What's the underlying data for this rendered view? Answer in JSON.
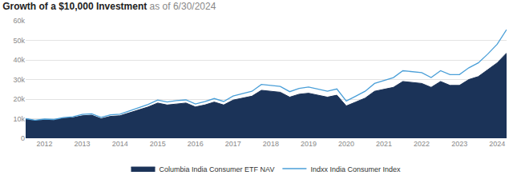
{
  "chart_data": {
    "type": "line",
    "title": "Growth of a $10,000 Investment",
    "subtitle": "as of 6/30/2024",
    "categories": [
      null,
      null,
      "2012",
      null,
      null,
      null,
      "2013",
      null,
      null,
      null,
      "2014",
      null,
      null,
      null,
      "2015",
      null,
      null,
      null,
      "2016",
      null,
      null,
      null,
      "2017",
      null,
      null,
      null,
      "2018",
      null,
      null,
      null,
      "2019",
      null,
      null,
      null,
      "2020",
      null,
      null,
      null,
      "2021",
      null,
      null,
      null,
      "2022",
      null,
      null,
      null,
      "2023",
      null,
      null,
      null,
      "2024",
      null
    ],
    "series": [
      {
        "name": "Columbia India Consumer ETF NAV",
        "type": "area",
        "color": "#1b3358",
        "values": [
          10000,
          9000,
          9500,
          9300,
          10200,
          10500,
          11500,
          11800,
          10000,
          11200,
          11500,
          13000,
          14500,
          16000,
          18000,
          17000,
          17500,
          18000,
          16000,
          17000,
          18500,
          17000,
          19500,
          20500,
          21500,
          24500,
          24000,
          23500,
          21000,
          22500,
          23000,
          22000,
          21000,
          22000,
          16500,
          18500,
          20500,
          24000,
          25000,
          26000,
          29000,
          28500,
          28000,
          26000,
          29000,
          27000,
          27000,
          30000,
          31500,
          35000,
          38500,
          43500
        ]
      },
      {
        "name": "Indxx India Consumer Index",
        "type": "line",
        "color": "#4a9fd8",
        "values": [
          10000,
          9200,
          9800,
          9600,
          10600,
          11000,
          12200,
          12500,
          10700,
          12000,
          12300,
          14000,
          15600,
          17300,
          19500,
          18500,
          19200,
          19600,
          17500,
          18700,
          20300,
          18800,
          21600,
          22800,
          24000,
          27500,
          27000,
          26500,
          23800,
          25500,
          26200,
          25000,
          24000,
          25200,
          19000,
          21500,
          24000,
          28000,
          29500,
          31000,
          34500,
          34000,
          33500,
          31000,
          34500,
          32500,
          32500,
          36000,
          38500,
          43000,
          48000,
          55500
        ]
      }
    ],
    "ylim": [
      0,
      60000
    ],
    "yticks": [
      0,
      {
        "value": 10000,
        "label": "10k"
      },
      {
        "value": 20000,
        "label": "20k"
      },
      {
        "value": 30000,
        "label": "30k"
      },
      {
        "value": 40000,
        "label": "40k"
      },
      {
        "value": 50000,
        "label": "50k"
      },
      {
        "value": 60000,
        "label": "60k"
      }
    ],
    "grid": true,
    "legend": "bottom"
  }
}
